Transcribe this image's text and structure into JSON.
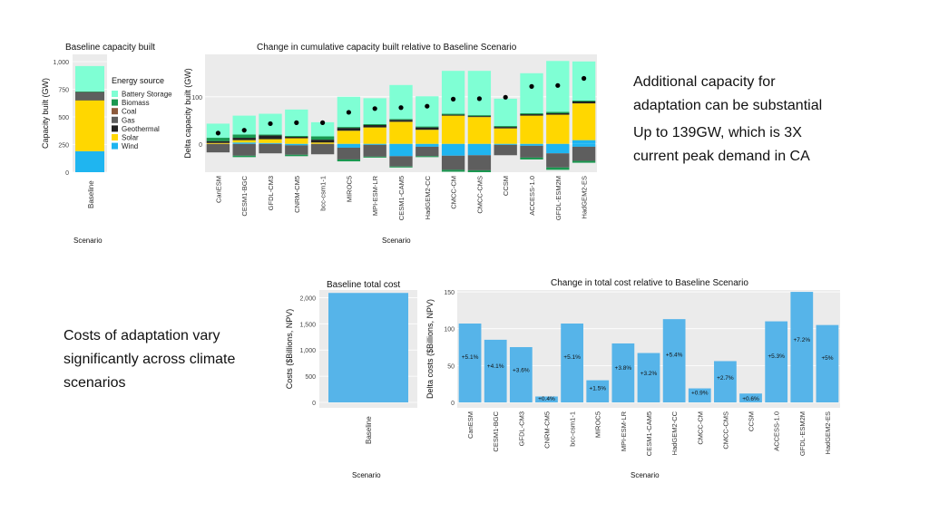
{
  "slide": {
    "note_capacity_line1": "Additional capacity for",
    "note_capacity_line2": "adaptation can be substantial",
    "note_peak_line1": "Up to 139GW, which is 3X",
    "note_peak_line2": "current peak demand in CA",
    "note_cost_line1": "Costs of adaptation vary",
    "note_cost_line2": "significantly across climate",
    "note_cost_line3": "scenarios"
  },
  "colors": {
    "battery": "#7FFFD4",
    "biomass": "#1a9850",
    "coal": "#8c5a3c",
    "gas": "#5e5e5e",
    "geothermal": "#222222",
    "solar": "#FFD700",
    "wind": "#1fb5f0",
    "cost": "#56B4E9",
    "panel": "#ebebeb",
    "grid": "#ffffff"
  },
  "chart_data": [
    {
      "id": "baseline_capacity",
      "type": "bar",
      "title": "Baseline capacity built",
      "xlabel": "Scenario",
      "ylabel": "Capacity built (GW)",
      "ylim": [
        0,
        1000
      ],
      "yticks": [
        "0",
        "250",
        "500",
        "750",
        "1,000"
      ],
      "categories": [
        "Baseline"
      ],
      "legend_title": "Energy source",
      "series": [
        {
          "name": "Wind",
          "key": "wind",
          "values": [
            190
          ]
        },
        {
          "name": "Solar",
          "key": "solar",
          "values": [
            460
          ]
        },
        {
          "name": "Geothermal",
          "key": "geothermal",
          "values": [
            5
          ]
        },
        {
          "name": "Gas",
          "key": "gas",
          "values": [
            70
          ]
        },
        {
          "name": "Coal",
          "key": "coal",
          "values": [
            0
          ]
        },
        {
          "name": "Biomass",
          "key": "biomass",
          "values": [
            5
          ]
        },
        {
          "name": "Battery Storage",
          "key": "battery",
          "values": [
            230
          ]
        }
      ]
    },
    {
      "id": "delta_capacity",
      "type": "bar",
      "title": "Change in cumulative capacity built relative to Baseline Scenario",
      "xlabel": "Scenario",
      "ylabel": "Delta capacity built (GW)",
      "ylim": [
        -60,
        190
      ],
      "yticks": [
        {
          "v": 0,
          "label": "0"
        },
        {
          "v": 100,
          "label": "100"
        }
      ],
      "categories": [
        "CanESM",
        "CESM1-BGC",
        "GFDL-CM3",
        "CNRM-CM5",
        "bcc-csm1-1",
        "MIROC5",
        "MPI-ESM-LR",
        "CESM1-CAM5",
        "HadGEM2-CC",
        "CMCC-CM",
        "CMCC-CMS",
        "CCSM",
        "ACCESS-1.0",
        "GFDL-ESM2M",
        "HadGEM2-ES"
      ],
      "positive": [
        {
          "key": "wind",
          "values": [
            0,
            3,
            2,
            0,
            0,
            0,
            0,
            0,
            0,
            0,
            0,
            0,
            0,
            0,
            8
          ]
        },
        {
          "key": "solar",
          "values": [
            2,
            5,
            8,
            12,
            3,
            28,
            35,
            47,
            30,
            60,
            57,
            33,
            60,
            62,
            78
          ]
        },
        {
          "key": "geothermal",
          "values": [
            4,
            5,
            8,
            3,
            6,
            6,
            5,
            4,
            5,
            2,
            2,
            3,
            3,
            3,
            4
          ]
        },
        {
          "key": "biomass",
          "values": [
            7,
            7,
            2,
            2,
            7,
            2,
            2,
            2,
            2,
            2,
            2,
            2,
            2,
            3,
            2
          ]
        },
        {
          "key": "battery",
          "values": [
            30,
            40,
            44,
            56,
            30,
            64,
            55,
            72,
            64,
            91,
            94,
            58,
            85,
            108,
            83
          ]
        }
      ],
      "negative": [
        {
          "key": "wind",
          "values": [
            0,
            0,
            0,
            -3,
            0,
            -8,
            -2,
            -26,
            -6,
            -25,
            -24,
            -2,
            -4,
            -20,
            -6
          ]
        },
        {
          "key": "gas",
          "values": [
            -18,
            -25,
            -20,
            -20,
            -22,
            -25,
            -25,
            -22,
            -20,
            -30,
            -32,
            -22,
            -25,
            -30,
            -30
          ]
        },
        {
          "key": "biomass",
          "values": [
            0,
            -3,
            0,
            -3,
            0,
            -4,
            -2,
            -2,
            -2,
            -4,
            -4,
            0,
            -4,
            -5,
            -4
          ]
        }
      ],
      "dots": [
        23,
        29,
        43,
        45,
        45,
        67,
        75,
        77,
        80,
        95,
        96,
        99,
        122,
        124,
        139
      ]
    },
    {
      "id": "baseline_cost",
      "type": "bar",
      "title": "Baseline total cost",
      "xlabel": "Scenario",
      "ylabel": "Costs ($Billions, NPV)",
      "ylim": [
        0,
        2250
      ],
      "yticks": [
        "0",
        "500",
        "1,000",
        "1,500",
        "2,000"
      ],
      "categories": [
        "Baseline"
      ],
      "values": [
        2090
      ]
    },
    {
      "id": "delta_cost",
      "type": "bar",
      "title": "Change in total cost relative to Baseline Scenario",
      "xlabel": "Scenario",
      "ylabel": "Delta costs ($Billions, NPV)",
      "ylim": [
        0,
        155
      ],
      "yticks": [
        "0",
        "50",
        "100",
        "150"
      ],
      "categories": [
        "CanESM",
        "CESM1-BGC",
        "GFDL-CM3",
        "CNRM-CM5",
        "bcc-csm1-1",
        "MIROC5",
        "MPI-ESM-LR",
        "CESM1-CAM5",
        "HadGEM2-CC",
        "CMCC-CM",
        "CMCC-CMS",
        "CCSM",
        "ACCESS-1.0",
        "GFDL-ESM2M",
        "HadGEM2-ES"
      ],
      "values": [
        107,
        85,
        75,
        8,
        107,
        30,
        80,
        67,
        113,
        19,
        56,
        12,
        110,
        150,
        105
      ],
      "labels": [
        "+5.1%",
        "+4.1%",
        "+3.6%",
        "+0.4%",
        "+5.1%",
        "+1.5%",
        "+3.8%",
        "+3.2%",
        "+5.4%",
        "+0.9%",
        "+2.7%",
        "+0.6%",
        "+5.3%",
        "+7.2%",
        "+5%"
      ]
    }
  ]
}
